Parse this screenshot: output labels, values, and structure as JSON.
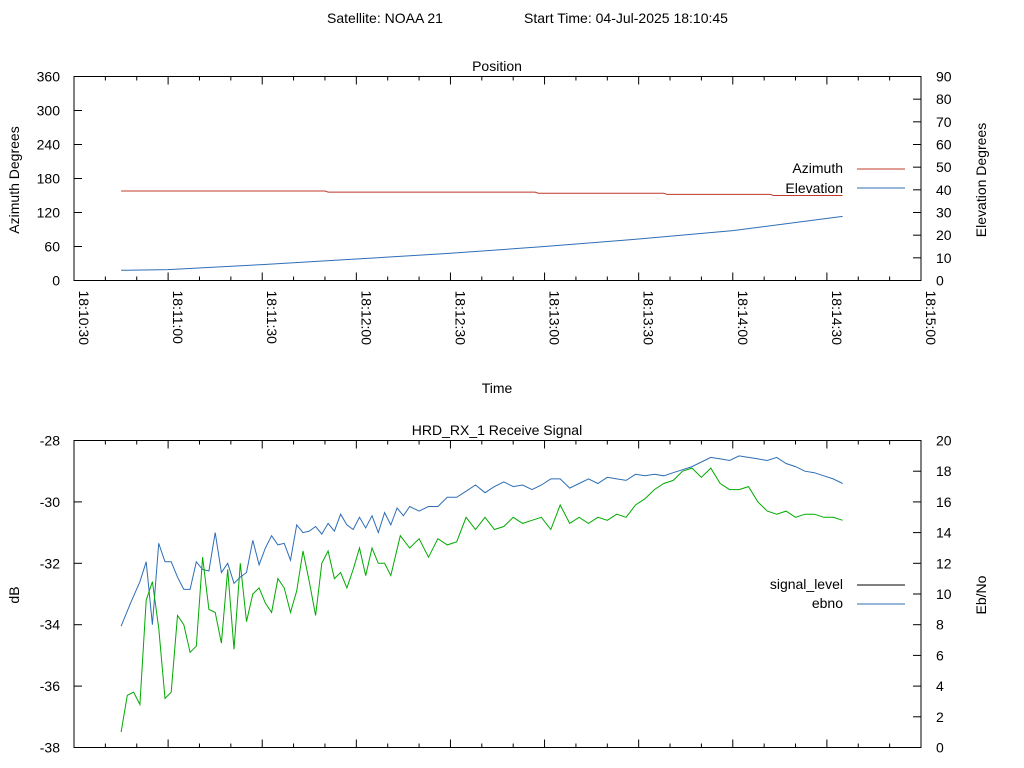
{
  "header": {
    "satellite": "Satellite: NOAA 21",
    "start_time": "Start Time: 04-Jul-2025 18:10:45"
  },
  "chart_data": [
    {
      "type": "line",
      "title": "Position",
      "xlabel": "Time",
      "ylabel": "Azimuth Degrees",
      "y2label": "Elevation Degrees",
      "x_ticks": [
        "18:10:30",
        "18:11:00",
        "18:11:30",
        "18:12:00",
        "18:12:30",
        "18:13:00",
        "18:13:30",
        "18:14:00",
        "18:14:30",
        "18:15:00"
      ],
      "ylim": [
        0,
        360
      ],
      "y_ticks": [
        "0",
        "60",
        "120",
        "180",
        "240",
        "300",
        "360"
      ],
      "y2lim": [
        0,
        90
      ],
      "y2_ticks": [
        "0",
        "10",
        "20",
        "30",
        "40",
        "50",
        "60",
        "70",
        "80",
        "90"
      ],
      "legend_position": "right",
      "grid": false,
      "series": [
        {
          "name": "Azimuth",
          "axis": "y",
          "color": "#c0392b",
          "x": [
            "18:10:45",
            "18:11:50",
            "18:11:51",
            "18:12:57",
            "18:12:58",
            "18:13:38",
            "18:13:39",
            "18:14:12",
            "18:14:13",
            "18:14:35"
          ],
          "values": [
            158,
            158,
            156,
            156,
            154,
            154,
            152,
            152,
            150,
            150
          ]
        },
        {
          "name": "Elevation",
          "axis": "y2",
          "color": "#2e6eb5",
          "x": [
            "18:10:45",
            "18:11:00",
            "18:11:30",
            "18:12:00",
            "18:12:30",
            "18:13:00",
            "18:13:30",
            "18:14:00",
            "18:14:35"
          ],
          "values": [
            4.5,
            4.8,
            7.0,
            9.5,
            12.0,
            15.0,
            18.3,
            22.0,
            28.3
          ]
        }
      ]
    },
    {
      "type": "line",
      "title": "HRD_RX_1 Receive Signal",
      "xlabel": "",
      "ylabel": "dB",
      "y2label": "Eb/No",
      "ylim": [
        -38,
        -28
      ],
      "y_ticks": [
        "-38",
        "-36",
        "-34",
        "-32",
        "-30",
        "-28"
      ],
      "y2lim": [
        0,
        20
      ],
      "y2_ticks": [
        "0",
        "2",
        "4",
        "6",
        "8",
        "10",
        "12",
        "14",
        "16",
        "18",
        "20"
      ],
      "x_range": [
        "18:10:30",
        "18:15:00"
      ],
      "legend_position": "right",
      "grid": false,
      "series": [
        {
          "name": "signal_level",
          "axis": "y",
          "color": "#000000",
          "values": []
        },
        {
          "name": "ebno",
          "axis": "y2",
          "color": "#2e6eb5",
          "x": [
            "18:10:45",
            "18:10:48",
            "18:10:51",
            "18:10:53",
            "18:10:55",
            "18:10:57",
            "18:10:59",
            "18:11:01",
            "18:11:03",
            "18:11:05",
            "18:11:07",
            "18:11:09",
            "18:11:11",
            "18:11:13",
            "18:11:15",
            "18:11:17",
            "18:11:19",
            "18:11:21",
            "18:11:23",
            "18:11:25",
            "18:11:27",
            "18:11:29",
            "18:11:31",
            "18:11:33",
            "18:11:35",
            "18:11:37",
            "18:11:39",
            "18:11:41",
            "18:11:43",
            "18:11:45",
            "18:11:47",
            "18:11:49",
            "18:11:51",
            "18:11:53",
            "18:11:55",
            "18:11:57",
            "18:11:59",
            "18:12:01",
            "18:12:03",
            "18:12:05",
            "18:12:07",
            "18:12:09",
            "18:12:11",
            "18:12:13",
            "18:12:15",
            "18:12:17",
            "18:12:20",
            "18:12:23",
            "18:12:26",
            "18:12:29",
            "18:12:32",
            "18:12:35",
            "18:12:38",
            "18:12:41",
            "18:12:44",
            "18:12:47",
            "18:12:50",
            "18:12:53",
            "18:12:56",
            "18:12:59",
            "18:13:02",
            "18:13:05",
            "18:13:08",
            "18:13:11",
            "18:13:14",
            "18:13:17",
            "18:13:20",
            "18:13:23",
            "18:13:26",
            "18:13:29",
            "18:13:32",
            "18:13:35",
            "18:13:38",
            "18:13:41",
            "18:13:44",
            "18:13:47",
            "18:13:50",
            "18:13:53",
            "18:13:56",
            "18:13:59",
            "18:14:02",
            "18:14:05",
            "18:14:08",
            "18:14:11",
            "18:14:14",
            "18:14:17",
            "18:14:20",
            "18:14:23",
            "18:14:26",
            "18:14:29",
            "18:14:32",
            "18:14:35"
          ],
          "values": [
            7.9,
            9.4,
            10.8,
            12.1,
            8.0,
            13.3,
            12.1,
            12.1,
            11.1,
            10.3,
            10.3,
            12.1,
            11.6,
            11.5,
            14.0,
            11.4,
            12.0,
            10.7,
            11.1,
            11.4,
            13.5,
            11.9,
            13.0,
            13.8,
            13.2,
            13.3,
            12.2,
            14.5,
            14.0,
            14.1,
            14.4,
            13.9,
            14.6,
            14.1,
            15.2,
            14.5,
            14.2,
            15.0,
            14.3,
            15.1,
            14.0,
            15.3,
            14.5,
            15.6,
            15.1,
            15.7,
            15.4,
            15.7,
            15.7,
            16.3,
            16.3,
            16.7,
            17.1,
            16.6,
            17.0,
            17.3,
            17.0,
            17.1,
            16.8,
            17.1,
            17.5,
            17.5,
            16.9,
            17.2,
            17.5,
            17.2,
            17.6,
            17.5,
            17.4,
            17.8,
            17.7,
            17.8,
            17.7,
            17.9,
            18.1,
            18.3,
            18.6,
            18.9,
            18.8,
            18.7,
            19.0,
            18.9,
            18.8,
            18.7,
            18.9,
            18.5,
            18.3,
            18.0,
            17.9,
            17.7,
            17.5,
            17.2
          ]
        },
        {
          "name": "",
          "axis": "y",
          "color": "#00aa00",
          "x": [
            "18:10:45",
            "18:10:47",
            "18:10:49",
            "18:10:51",
            "18:10:53",
            "18:10:55",
            "18:10:57",
            "18:10:59",
            "18:11:01",
            "18:11:03",
            "18:11:05",
            "18:11:07",
            "18:11:09",
            "18:11:11",
            "18:11:13",
            "18:11:15",
            "18:11:17",
            "18:11:19",
            "18:11:21",
            "18:11:23",
            "18:11:25",
            "18:11:27",
            "18:11:29",
            "18:11:31",
            "18:11:33",
            "18:11:35",
            "18:11:37",
            "18:11:39",
            "18:11:41",
            "18:11:43",
            "18:11:45",
            "18:11:47",
            "18:11:49",
            "18:11:51",
            "18:11:53",
            "18:11:55",
            "18:11:57",
            "18:11:59",
            "18:12:01",
            "18:12:03",
            "18:12:05",
            "18:12:07",
            "18:12:09",
            "18:12:11",
            "18:12:14",
            "18:12:17",
            "18:12:20",
            "18:12:23",
            "18:12:26",
            "18:12:29",
            "18:12:32",
            "18:12:35",
            "18:12:38",
            "18:12:41",
            "18:12:44",
            "18:12:47",
            "18:12:50",
            "18:12:53",
            "18:12:56",
            "18:12:59",
            "18:13:02",
            "18:13:05",
            "18:13:08",
            "18:13:11",
            "18:13:14",
            "18:13:17",
            "18:13:20",
            "18:13:23",
            "18:13:26",
            "18:13:29",
            "18:13:32",
            "18:13:35",
            "18:13:38",
            "18:13:41",
            "18:13:44",
            "18:13:47",
            "18:13:50",
            "18:13:53",
            "18:13:56",
            "18:13:59",
            "18:14:02",
            "18:14:05",
            "18:14:08",
            "18:14:11",
            "18:14:14",
            "18:14:17",
            "18:14:20",
            "18:14:23",
            "18:14:26",
            "18:14:29",
            "18:14:32",
            "18:14:35"
          ],
          "values": [
            -37.5,
            -36.3,
            -36.2,
            -36.6,
            -33.2,
            -32.6,
            -34.1,
            -36.4,
            -36.2,
            -33.7,
            -34.0,
            -34.9,
            -34.7,
            -31.8,
            -33.5,
            -33.6,
            -34.6,
            -32.2,
            -34.8,
            -32.0,
            -33.9,
            -33.0,
            -32.8,
            -33.3,
            -33.6,
            -32.5,
            -32.8,
            -33.6,
            -32.9,
            -31.6,
            -32.6,
            -33.7,
            -32.0,
            -31.6,
            -32.5,
            -32.3,
            -32.8,
            -32.2,
            -31.5,
            -32.4,
            -31.5,
            -32.0,
            -32.0,
            -32.4,
            -31.1,
            -31.5,
            -31.2,
            -31.8,
            -31.2,
            -31.4,
            -31.3,
            -30.5,
            -30.9,
            -30.5,
            -30.9,
            -30.8,
            -30.5,
            -30.7,
            -30.6,
            -30.5,
            -30.9,
            -30.1,
            -30.7,
            -30.5,
            -30.7,
            -30.5,
            -30.6,
            -30.4,
            -30.5,
            -30.1,
            -29.9,
            -29.6,
            -29.4,
            -29.3,
            -29.0,
            -28.9,
            -29.2,
            -28.9,
            -29.4,
            -29.6,
            -29.6,
            -29.5,
            -30.0,
            -30.3,
            -30.4,
            -30.3,
            -30.5,
            -30.4,
            -30.4,
            -30.5,
            -30.5,
            -30.6
          ]
        }
      ]
    }
  ]
}
